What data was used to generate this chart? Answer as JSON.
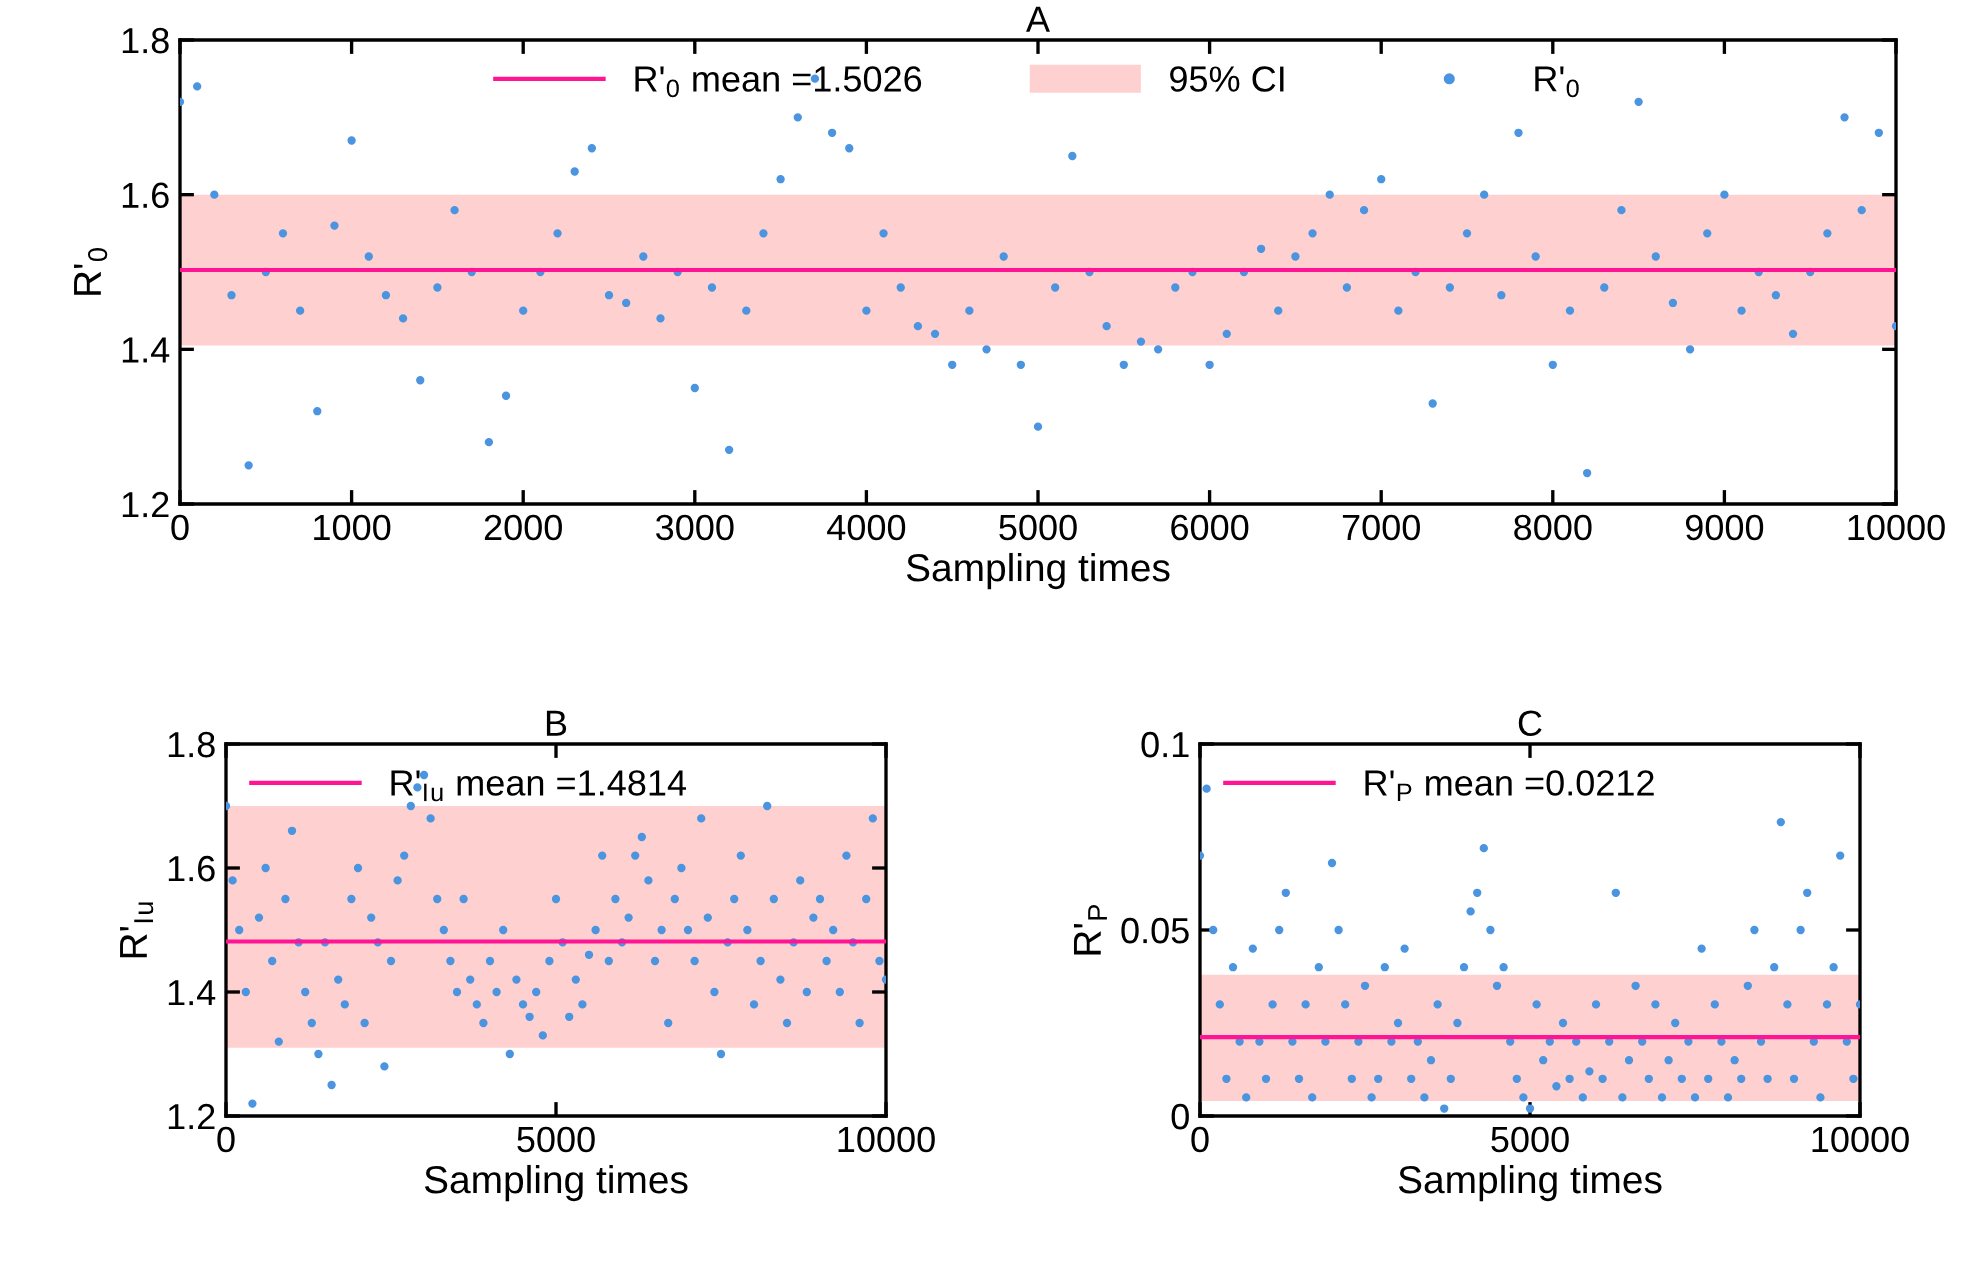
{
  "chart_data": [
    {
      "type": "scatter",
      "title": "A",
      "xlabel": "Sampling times",
      "ylabel": "R'$_{0}$",
      "x": [
        0,
        100,
        200,
        300,
        400,
        500,
        600,
        700,
        800,
        900,
        1000,
        1100,
        1200,
        1300,
        1400,
        1500,
        1600,
        1700,
        1800,
        1900,
        2000,
        2100,
        2200,
        2300,
        2400,
        2500,
        2600,
        2700,
        2800,
        2900,
        3000,
        3100,
        3200,
        3300,
        3400,
        3500,
        3600,
        3700,
        3800,
        3900,
        4000,
        4100,
        4200,
        4300,
        4400,
        4500,
        4600,
        4700,
        4800,
        4900,
        5000,
        5100,
        5200,
        5300,
        5400,
        5500,
        5600,
        5700,
        5800,
        5900,
        6000,
        6100,
        6200,
        6300,
        6400,
        6500,
        6600,
        6700,
        6800,
        6900,
        7000,
        7100,
        7200,
        7300,
        7400,
        7500,
        7600,
        7700,
        7800,
        7900,
        8000,
        8100,
        8200,
        8300,
        8400,
        8500,
        8600,
        8700,
        8800,
        8900,
        9000,
        9100,
        9200,
        9300,
        9400,
        9500,
        9600,
        9700,
        9800,
        9900,
        10000
      ],
      "series": [
        {
          "name": "R'$_{0}$",
          "color": "#4a94e0",
          "values": [
            1.72,
            1.74,
            1.6,
            1.47,
            1.25,
            1.5,
            1.55,
            1.45,
            1.32,
            1.56,
            1.67,
            1.52,
            1.47,
            1.44,
            1.36,
            1.48,
            1.58,
            1.5,
            1.28,
            1.34,
            1.45,
            1.5,
            1.55,
            1.63,
            1.66,
            1.47,
            1.46,
            1.52,
            1.44,
            1.5,
            1.35,
            1.48,
            1.27,
            1.45,
            1.55,
            1.62,
            1.7,
            1.75,
            1.68,
            1.66,
            1.45,
            1.55,
            1.48,
            1.43,
            1.42,
            1.38,
            1.45,
            1.4,
            1.52,
            1.38,
            1.3,
            1.48,
            1.65,
            1.5,
            1.43,
            1.38,
            1.41,
            1.4,
            1.48,
            1.5,
            1.38,
            1.42,
            1.5,
            1.53,
            1.45,
            1.52,
            1.55,
            1.6,
            1.48,
            1.58,
            1.62,
            1.45,
            1.5,
            1.33,
            1.48,
            1.55,
            1.6,
            1.47,
            1.68,
            1.52,
            1.38,
            1.45,
            1.24,
            1.48,
            1.58,
            1.72,
            1.52,
            1.46,
            1.4,
            1.55,
            1.6,
            1.45,
            1.5,
            1.47,
            1.42,
            1.5,
            1.55,
            1.7,
            1.58,
            1.68,
            1.43
          ]
        }
      ],
      "ref_lines": [
        {
          "axis": "y",
          "value": 1.5026,
          "label": "R'$_{0}$ mean =1.5026",
          "color": "#ff1493"
        }
      ],
      "bands": [
        {
          "axis": "y",
          "from": 1.405,
          "to": 1.6,
          "label": "95% CI",
          "color": "#ffd0d0"
        }
      ],
      "xlim": [
        0,
        10000
      ],
      "xticks": [
        0,
        1000,
        2000,
        3000,
        4000,
        5000,
        6000,
        7000,
        8000,
        9000,
        10000
      ],
      "ylim": [
        1.2,
        1.8
      ],
      "yticks": [
        1.2,
        1.4,
        1.6,
        1.8
      ],
      "legend": "top",
      "marker": "circle",
      "grid": false
    },
    {
      "type": "scatter",
      "title": "B",
      "xlabel": "Sampling times",
      "ylabel": "R'$_{I}$$_{u}$",
      "x": [
        0,
        100,
        200,
        300,
        400,
        500,
        600,
        700,
        800,
        900,
        1000,
        1100,
        1200,
        1300,
        1400,
        1500,
        1600,
        1700,
        1800,
        1900,
        2000,
        2100,
        2200,
        2300,
        2400,
        2500,
        2600,
        2700,
        2800,
        2900,
        3000,
        3100,
        3200,
        3300,
        3400,
        3500,
        3600,
        3700,
        3800,
        3900,
        4000,
        4100,
        4200,
        4300,
        4400,
        4500,
        4600,
        4700,
        4800,
        4900,
        5000,
        5100,
        5200,
        5300,
        5400,
        5500,
        5600,
        5700,
        5800,
        5900,
        6000,
        6100,
        6200,
        6300,
        6400,
        6500,
        6600,
        6700,
        6800,
        6900,
        7000,
        7100,
        7200,
        7300,
        7400,
        7500,
        7600,
        7700,
        7800,
        7900,
        8000,
        8100,
        8200,
        8300,
        8400,
        8500,
        8600,
        8700,
        8800,
        8900,
        9000,
        9100,
        9200,
        9300,
        9400,
        9500,
        9600,
        9700,
        9800,
        9900,
        10000
      ],
      "series": [
        {
          "color": "#4a94e0",
          "values": [
            1.7,
            1.58,
            1.5,
            1.4,
            1.22,
            1.52,
            1.6,
            1.45,
            1.32,
            1.55,
            1.66,
            1.48,
            1.4,
            1.35,
            1.3,
            1.48,
            1.25,
            1.42,
            1.38,
            1.55,
            1.6,
            1.35,
            1.52,
            1.48,
            1.28,
            1.45,
            1.58,
            1.62,
            1.7,
            1.73,
            1.75,
            1.68,
            1.55,
            1.5,
            1.45,
            1.4,
            1.55,
            1.42,
            1.38,
            1.35,
            1.45,
            1.4,
            1.5,
            1.3,
            1.42,
            1.38,
            1.36,
            1.4,
            1.33,
            1.45,
            1.55,
            1.48,
            1.36,
            1.42,
            1.38,
            1.46,
            1.5,
            1.62,
            1.45,
            1.55,
            1.48,
            1.52,
            1.62,
            1.65,
            1.58,
            1.45,
            1.5,
            1.35,
            1.55,
            1.6,
            1.5,
            1.45,
            1.68,
            1.52,
            1.4,
            1.3,
            1.48,
            1.55,
            1.62,
            1.5,
            1.38,
            1.45,
            1.7,
            1.55,
            1.42,
            1.35,
            1.48,
            1.58,
            1.4,
            1.52,
            1.55,
            1.45,
            1.5,
            1.4,
            1.62,
            1.48,
            1.35,
            1.55,
            1.68,
            1.45,
            1.42
          ]
        }
      ],
      "ref_lines": [
        {
          "axis": "y",
          "value": 1.4814,
          "label": "R'$_{I}$$_{u}$ mean =1.4814",
          "color": "#ff1493"
        }
      ],
      "bands": [
        {
          "axis": "y",
          "from": 1.31,
          "to": 1.7,
          "color": "#ffd0d0"
        }
      ],
      "xlim": [
        0,
        10000
      ],
      "xticks": [
        0,
        5000,
        10000
      ],
      "ylim": [
        1.2,
        1.8
      ],
      "yticks": [
        1.2,
        1.4,
        1.6,
        1.8
      ],
      "legend": "top left",
      "marker": "circle",
      "grid": false
    },
    {
      "type": "scatter",
      "title": "C",
      "xlabel": "Sampling times",
      "ylabel": "R'$_{P}$",
      "x": [
        0,
        100,
        200,
        300,
        400,
        500,
        600,
        700,
        800,
        900,
        1000,
        1100,
        1200,
        1300,
        1400,
        1500,
        1600,
        1700,
        1800,
        1900,
        2000,
        2100,
        2200,
        2300,
        2400,
        2500,
        2600,
        2700,
        2800,
        2900,
        3000,
        3100,
        3200,
        3300,
        3400,
        3500,
        3600,
        3700,
        3800,
        3900,
        4000,
        4100,
        4200,
        4300,
        4400,
        4500,
        4600,
        4700,
        4800,
        4900,
        5000,
        5100,
        5200,
        5300,
        5400,
        5500,
        5600,
        5700,
        5800,
        5900,
        6000,
        6100,
        6200,
        6300,
        6400,
        6500,
        6600,
        6700,
        6800,
        6900,
        7000,
        7100,
        7200,
        7300,
        7400,
        7500,
        7600,
        7700,
        7800,
        7900,
        8000,
        8100,
        8200,
        8300,
        8400,
        8500,
        8600,
        8700,
        8800,
        8900,
        9000,
        9100,
        9200,
        9300,
        9400,
        9500,
        9600,
        9700,
        9800,
        9900,
        10000
      ],
      "series": [
        {
          "color": "#4a94e0",
          "values": [
            0.07,
            0.088,
            0.05,
            0.03,
            0.01,
            0.04,
            0.02,
            0.005,
            0.045,
            0.02,
            0.01,
            0.03,
            0.05,
            0.06,
            0.02,
            0.01,
            0.03,
            0.005,
            0.04,
            0.02,
            0.068,
            0.05,
            0.03,
            0.01,
            0.02,
            0.035,
            0.005,
            0.01,
            0.04,
            0.02,
            0.025,
            0.045,
            0.01,
            0.02,
            0.005,
            0.015,
            0.03,
            0.002,
            0.01,
            0.025,
            0.04,
            0.055,
            0.06,
            0.072,
            0.05,
            0.035,
            0.04,
            0.02,
            0.01,
            0.005,
            0.002,
            0.03,
            0.015,
            0.02,
            0.008,
            0.025,
            0.01,
            0.02,
            0.005,
            0.012,
            0.03,
            0.01,
            0.02,
            0.06,
            0.005,
            0.015,
            0.035,
            0.02,
            0.01,
            0.03,
            0.005,
            0.015,
            0.025,
            0.01,
            0.02,
            0.005,
            0.045,
            0.01,
            0.03,
            0.02,
            0.005,
            0.015,
            0.01,
            0.035,
            0.05,
            0.02,
            0.01,
            0.04,
            0.079,
            0.03,
            0.01,
            0.05,
            0.06,
            0.02,
            0.005,
            0.03,
            0.04,
            0.07,
            0.02,
            0.01,
            0.03
          ]
        }
      ],
      "ref_lines": [
        {
          "axis": "y",
          "value": 0.0212,
          "label": "R'$_{P}$ mean =0.0212",
          "color": "#ff1493"
        }
      ],
      "bands": [
        {
          "axis": "y",
          "from": 0.004,
          "to": 0.038,
          "color": "#ffd0d0"
        }
      ],
      "xlim": [
        0,
        10000
      ],
      "xticks": [
        0,
        5000,
        10000
      ],
      "ylim": [
        0,
        0.1
      ],
      "yticks": [
        0,
        0.05,
        0.1
      ],
      "legend": "top left",
      "marker": "circle",
      "grid": false
    }
  ]
}
